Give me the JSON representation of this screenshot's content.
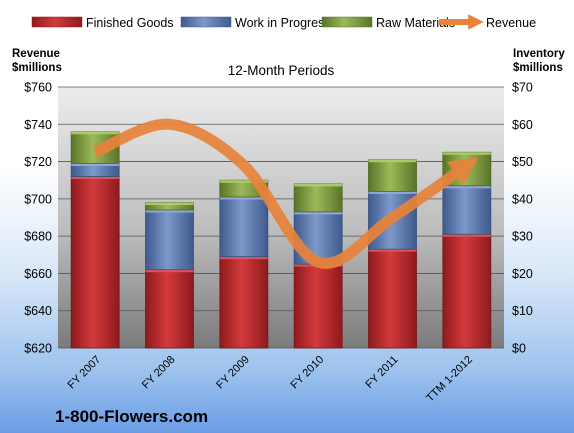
{
  "chart_data": {
    "type": "bar",
    "stacked": true,
    "subtitle": "12-Month Periods",
    "categories": [
      "FY 2007",
      "FY 2008",
      "FY 2009",
      "FY 2010",
      "FY 2011",
      "TTM 1-2012"
    ],
    "series": [
      {
        "name": "Finished Goods",
        "axis": "right",
        "color": "#c0262a",
        "values": [
          46.0,
          21.0,
          24.5,
          22.5,
          26.5,
          30.5
        ]
      },
      {
        "name": "Work in Progress",
        "axis": "right",
        "color": "#5b7bb8",
        "values": [
          3.5,
          16.0,
          16.0,
          14.0,
          15.5,
          13.0
        ]
      },
      {
        "name": "Raw Materials",
        "axis": "right",
        "color": "#7f9d3e",
        "values": [
          8.5,
          2.0,
          4.5,
          7.5,
          8.5,
          9.0
        ]
      },
      {
        "name": "Revenue",
        "axis": "left",
        "type": "line",
        "color": "#e8833a",
        "values": [
          725,
          740,
          718,
          666,
          690,
          718
        ]
      }
    ],
    "left_axis": {
      "label": "Revenue $millions",
      "ylim": [
        620,
        760
      ],
      "ticks": [
        "$620",
        "$640",
        "$660",
        "$680",
        "$700",
        "$720",
        "$740",
        "$760"
      ]
    },
    "right_axis": {
      "label": "Inventory $millions",
      "ylim": [
        0,
        70
      ],
      "ticks": [
        "$0",
        "$10",
        "$20",
        "$30",
        "$40",
        "$50",
        "$60",
        "$70"
      ]
    },
    "grid": true,
    "legend_position": "top"
  },
  "left_axis_title": [
    "Revenue",
    "$millions"
  ],
  "right_axis_title": [
    "Inventory",
    "$millions"
  ],
  "footer_text": "1-800-Flowers.com"
}
